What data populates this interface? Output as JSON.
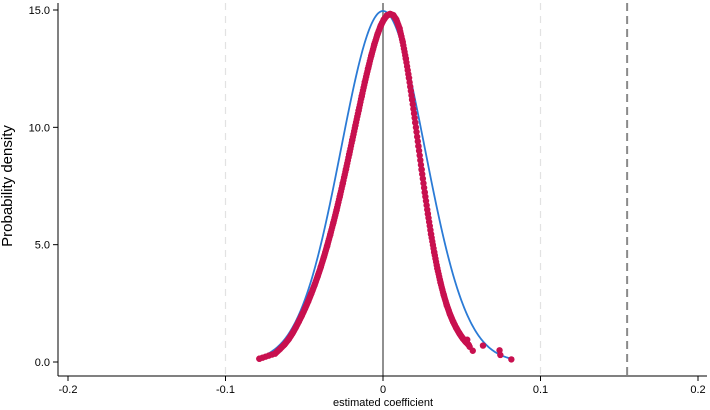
{
  "chart_data": {
    "type": "scatter",
    "xlabel": "estimated coefficient",
    "ylabel": "Probability density",
    "xlim": [
      -0.2,
      0.2
    ],
    "ylim": [
      0,
      15
    ],
    "x_ticks": [
      -0.2,
      -0.1,
      0,
      0.1,
      0.2
    ],
    "x_tick_labels": [
      "-0.2",
      "-0.1",
      "0",
      "0.1",
      "0.2"
    ],
    "y_ticks": [
      0,
      5,
      10,
      15
    ],
    "y_tick_labels": [
      "0.0",
      "5.0",
      "10.0",
      "15.0"
    ],
    "x_gridlines": [
      -0.1,
      0.1
    ],
    "zero_line_x": 0,
    "reference_line_x": 0.155,
    "grid": "vertical dashed at -0.1 and 0.1",
    "colors": {
      "points": "#c8104f",
      "fitted_curve": "#2b7bd6",
      "zero_line": "#909090",
      "reference_line": "#8a8a8a",
      "gridline": "#e2e2e2"
    },
    "fitted_normal": {
      "mean": 0.0,
      "sd": 0.02667
    },
    "series": [
      {
        "values": [
          [
            -0.0785,
            0.14
          ],
          [
            -0.0685,
            0.36
          ],
          [
            -0.0655,
            0.55
          ],
          [
            -0.0625,
            0.75
          ],
          [
            -0.0598,
            0.98
          ],
          [
            -0.0575,
            1.22
          ],
          [
            -0.0555,
            1.46
          ],
          [
            -0.0535,
            1.72
          ],
          [
            -0.0515,
            1.99
          ],
          [
            -0.0495,
            2.28
          ],
          [
            -0.0475,
            2.59
          ],
          [
            -0.0455,
            2.92
          ],
          [
            -0.0435,
            3.27
          ],
          [
            -0.0415,
            3.65
          ],
          [
            -0.0395,
            4.05
          ],
          [
            -0.0375,
            4.48
          ],
          [
            -0.0355,
            4.94
          ],
          [
            -0.0335,
            5.43
          ],
          [
            -0.0315,
            5.94
          ],
          [
            -0.0295,
            6.47
          ],
          [
            -0.0275,
            7.04
          ],
          [
            -0.0255,
            7.62
          ],
          [
            -0.0235,
            8.22
          ],
          [
            -0.0215,
            8.84
          ],
          [
            -0.0195,
            9.46
          ],
          [
            -0.0175,
            10.09
          ],
          [
            -0.0155,
            10.71
          ],
          [
            -0.0135,
            11.33
          ],
          [
            -0.0115,
            11.93
          ],
          [
            -0.0095,
            12.5
          ],
          [
            -0.0075,
            13.04
          ],
          [
            -0.0055,
            13.53
          ],
          [
            -0.0035,
            13.96
          ],
          [
            -0.0015,
            14.32
          ],
          [
            0.0005,
            14.59
          ],
          [
            0.0025,
            14.77
          ],
          [
            0.0045,
            14.83
          ],
          [
            0.0065,
            14.78
          ],
          [
            0.0085,
            14.58
          ],
          [
            0.0105,
            14.21
          ],
          [
            0.0125,
            13.64
          ],
          [
            0.0145,
            12.93
          ],
          [
            0.0165,
            12.1
          ],
          [
            0.0185,
            11.18
          ],
          [
            0.0205,
            10.2
          ],
          [
            0.0225,
            9.2
          ],
          [
            0.0245,
            8.2
          ],
          [
            0.0265,
            7.23
          ],
          [
            0.0285,
            6.31
          ],
          [
            0.0305,
            5.45
          ],
          [
            0.0325,
            4.68
          ],
          [
            0.0345,
            3.99
          ],
          [
            0.0365,
            3.39
          ],
          [
            0.0385,
            2.87
          ],
          [
            0.0405,
            2.42
          ],
          [
            0.0425,
            2.04
          ],
          [
            0.0445,
            1.72
          ],
          [
            0.0465,
            1.45
          ],
          [
            0.0485,
            1.22
          ],
          [
            0.0505,
            1.02
          ],
          [
            0.0525,
            0.86
          ],
          [
            0.0545,
            0.72
          ],
          [
            0.0535,
            0.95
          ],
          [
            0.055,
            0.65
          ],
          [
            0.057,
            0.48
          ],
          [
            0.0635,
            0.7
          ],
          [
            0.074,
            0.5
          ],
          [
            0.0745,
            0.3
          ],
          [
            0.0815,
            0.11
          ]
        ]
      }
    ]
  }
}
